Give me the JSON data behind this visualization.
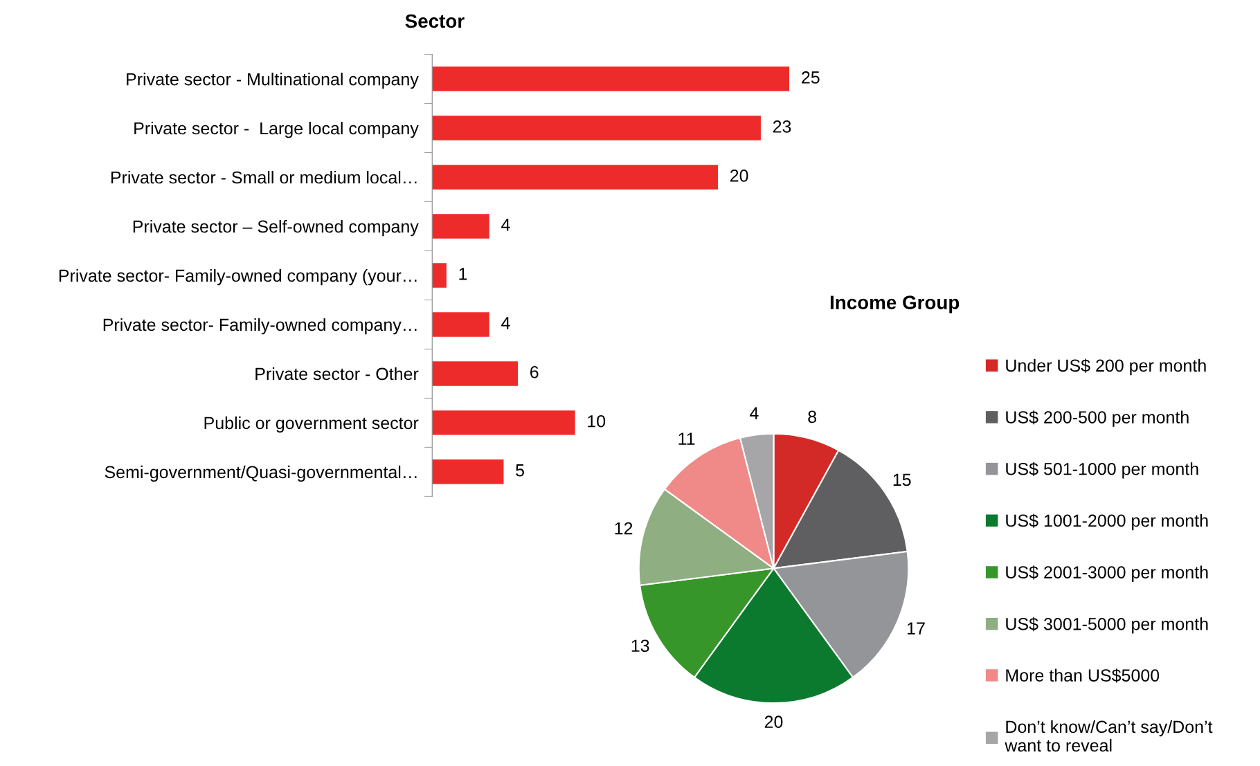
{
  "chart_data": [
    {
      "type": "bar",
      "title": "Sector",
      "orientation": "horizontal",
      "data_labels": true,
      "grid": false,
      "categories": [
        "Private sector - Multinational company",
        "Private sector -  Large local company",
        "Private sector - Small or medium local…",
        "Private sector – Self-owned company",
        "Private sector- Family-owned company (your…",
        "Private sector- Family-owned company…",
        "Private sector - Other",
        "Public or government sector",
        "Semi-government/Quasi-governmental…"
      ],
      "values": [
        25,
        23,
        20,
        4,
        1,
        4,
        6,
        10,
        5
      ],
      "color": "#ee2b2b"
    },
    {
      "type": "pie",
      "title": "Income Group",
      "legend": "right",
      "data_labels": true,
      "categories": [
        "Under US$ 200 per month",
        "US$ 200-500 per month",
        "US$ 501-1000 per month",
        "US$ 1001-2000 per month",
        "US$ 2001-3000 per month",
        "US$ 3001-5000 per month",
        "More than US$5000",
        "Don’t know/Can’t say/Don’t\nwant to reveal"
      ],
      "values": [
        8,
        15,
        17,
        20,
        13,
        12,
        11,
        4
      ],
      "colors": [
        "#d42a27",
        "#5f5f61",
        "#949598",
        "#0b7a2e",
        "#36962a",
        "#8fae82",
        "#f08a88",
        "#a6a6a8"
      ]
    }
  ]
}
